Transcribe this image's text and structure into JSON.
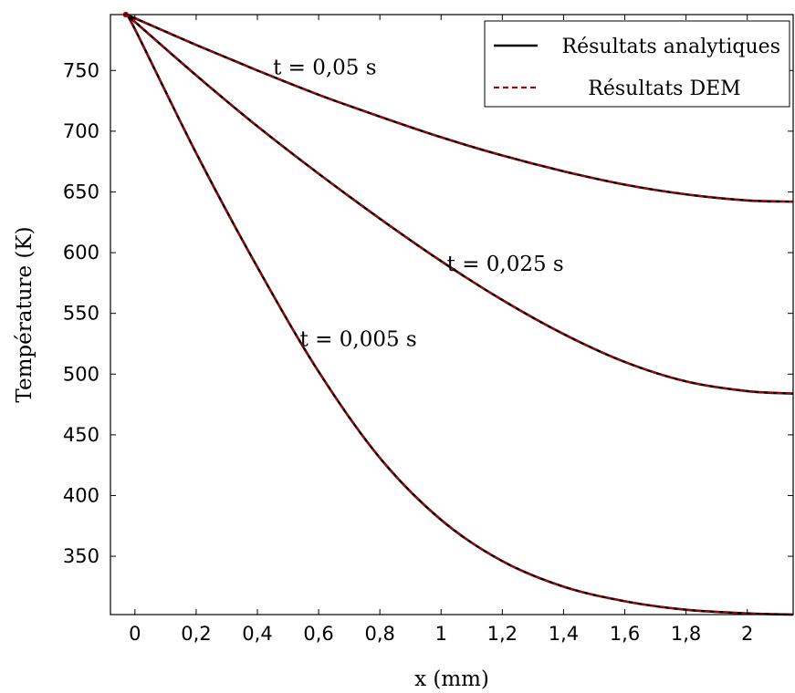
{
  "chart_data": {
    "type": "line",
    "title": "",
    "xlabel": "x (mm)",
    "ylabel": "Température (K)",
    "xlim": [
      -0.08,
      2.15
    ],
    "ylim": [
      302,
      796
    ],
    "x_ticks": [
      0,
      0.2,
      0.4,
      0.6,
      0.8,
      1,
      1.2,
      1.4,
      1.6,
      1.8,
      2
    ],
    "x_tick_labels": [
      "0",
      "0,2",
      "0,4",
      "0,6",
      "0,8",
      "1",
      "1,2",
      "1,4",
      "1,6",
      "1,8",
      "2"
    ],
    "y_ticks": [
      350,
      400,
      450,
      500,
      550,
      600,
      650,
      700,
      750
    ],
    "y_tick_labels": [
      "350",
      "400",
      "450",
      "500",
      "550",
      "600",
      "650",
      "700",
      "750"
    ],
    "grid": false,
    "legend": {
      "position": "top-right",
      "entries": [
        {
          "label": "Résultats analytiques",
          "color": "#000000",
          "style": "solid"
        },
        {
          "label": "Résultats DEM",
          "color": "#b00000",
          "style": "dashed"
        }
      ]
    },
    "annotations": [
      {
        "text": "t = 0,05 s",
        "x": 0.62,
        "y": 747
      },
      {
        "text": "t = 0,025 s",
        "x": 1.21,
        "y": 585
      },
      {
        "text": "t = 0,005 s",
        "x": 0.73,
        "y": 523
      }
    ],
    "series": [
      {
        "time": "t = 0,05 s",
        "x": [
          -0.03,
          0,
          0.2,
          0.4,
          0.6,
          0.8,
          1.0,
          1.2,
          1.4,
          1.6,
          1.8,
          2.0,
          2.15
        ],
        "values": [
          796,
          793,
          771,
          750,
          730,
          712,
          695,
          680,
          667,
          656,
          648,
          643,
          642
        ]
      },
      {
        "time": "t = 0,025 s",
        "x": [
          -0.03,
          0,
          0.2,
          0.4,
          0.6,
          0.8,
          1.0,
          1.2,
          1.4,
          1.6,
          1.8,
          2.0,
          2.15
        ],
        "values": [
          796,
          790,
          746,
          704,
          665,
          628,
          593,
          561,
          533,
          510,
          494,
          486,
          484
        ]
      },
      {
        "time": "t = 0,005 s",
        "x": [
          -0.03,
          0,
          0.2,
          0.4,
          0.6,
          0.8,
          1.0,
          1.2,
          1.4,
          1.6,
          1.8,
          2.0,
          2.15
        ],
        "values": [
          796,
          784,
          682,
          588,
          502,
          431,
          380,
          346,
          325,
          313,
          306,
          303,
          302
        ]
      }
    ]
  }
}
